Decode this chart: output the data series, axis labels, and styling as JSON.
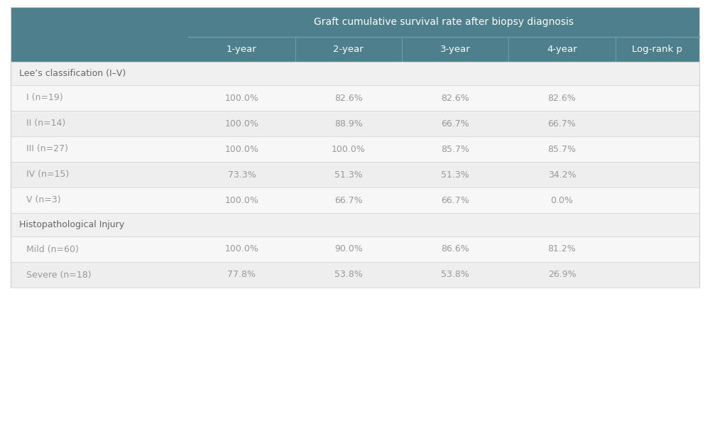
{
  "title": "Graft cumulative survival rate after biopsy diagnosis",
  "col_headers": [
    "1-year",
    "2-year",
    "3-year",
    "4-year",
    "Log-rank p"
  ],
  "section1_label": "Lee’s classification (I–V)",
  "section2_label": "Histopathological Injury",
  "rows": [
    {
      "label": "I (n=19)",
      "values": [
        "100.0%",
        "82.6%",
        "82.6%",
        "82.6%",
        ""
      ]
    },
    {
      "label": "II (n=14)",
      "values": [
        "100.0%",
        "88.9%",
        "66.7%",
        "66.7%",
        ""
      ]
    },
    {
      "label": "III (n=27)",
      "values": [
        "100.0%",
        "100.0%",
        "85.7%",
        "85.7%",
        ""
      ]
    },
    {
      "label": "IV (n=15)",
      "values": [
        "73.3%",
        "51.3%",
        "51.3%",
        "34.2%",
        ""
      ]
    },
    {
      "label": "V (n=3)",
      "values": [
        "100.0%",
        "66.7%",
        "66.7%",
        "0.0%",
        ""
      ]
    },
    {
      "label": "Mild (n=60)",
      "values": [
        "100.0%",
        "90.0%",
        "86.6%",
        "81.2%",
        ""
      ]
    },
    {
      "label": "Severe (n=18)",
      "values": [
        "77.8%",
        "53.8%",
        "53.8%",
        "26.9%",
        ""
      ]
    }
  ],
  "header_bg": "#4d7f8c",
  "header_text": "#ffffff",
  "section_bg": "#f0f0f0",
  "section_text": "#666666",
  "row_bg_light": "#f7f7f7",
  "row_bg_mid": "#eeeeee",
  "row_text": "#999999",
  "border_color": "#d0d0d0",
  "header_divider": "#6fa0aa",
  "fig_bg": "#ffffff",
  "figsize": [
    10,
    6
  ],
  "dpi": 100
}
